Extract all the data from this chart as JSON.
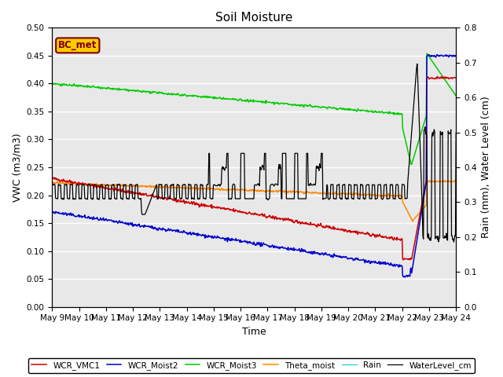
{
  "title": "Soil Moisture",
  "xlabel": "Time",
  "ylabel_left": "VWC (m3/m3)",
  "ylabel_right": "Rain (mm), Water Level (cm)",
  "ylim_left": [
    0.0,
    0.5
  ],
  "ylim_right": [
    0.0,
    0.8
  ],
  "n_days": 15,
  "xtick_labels": [
    "May 9",
    "May 10",
    "May 11",
    "May 12",
    "May 13",
    "May 14",
    "May 15",
    "May 16",
    "May 17",
    "May 18",
    "May 19",
    "May 20",
    "May 21",
    "May 22",
    "May 23",
    "May 24"
  ],
  "legend_labels": [
    "WCR_VMC1",
    "WCR_Moist2",
    "WCR_Moist3",
    "Theta_moist",
    "Rain",
    "WaterLevel_cm"
  ],
  "line_colors": {
    "WCR_VMC1": "#cc0000",
    "WCR_Moist2": "#0000cc",
    "WCR_Moist3": "#00cc00",
    "Theta_moist": "#ff8800",
    "Rain": "#00cccc",
    "WaterLevel_cm": "#000000"
  },
  "bc_met_box_color": "#ffcc00",
  "bc_met_text_color": "#800000",
  "background_color": "#e8e8e8",
  "title_fontsize": 11,
  "axis_label_fontsize": 9,
  "tick_fontsize": 7.5
}
